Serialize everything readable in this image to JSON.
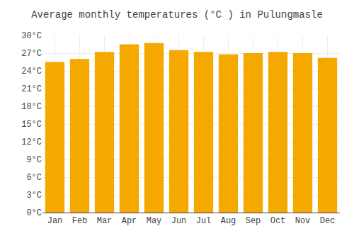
{
  "chart_data": {
    "type": "bar",
    "title": "Average monthly temperatures (°C ) in Pulungmasle",
    "categories": [
      "Jan",
      "Feb",
      "Mar",
      "Apr",
      "May",
      "Jun",
      "Jul",
      "Aug",
      "Sep",
      "Oct",
      "Nov",
      "Dec"
    ],
    "values": [
      25.5,
      26.0,
      27.2,
      28.5,
      28.7,
      27.5,
      27.2,
      26.8,
      27.0,
      27.2,
      27.0,
      26.2
    ],
    "color": "#F5A800",
    "ylim": [
      0,
      30
    ],
    "yticks": [
      {
        "value": 0,
        "label": "0°C"
      },
      {
        "value": 3,
        "label": "3°C"
      },
      {
        "value": 6,
        "label": "6°C"
      },
      {
        "value": 9,
        "label": "9°C"
      },
      {
        "value": 12,
        "label": "12°C"
      },
      {
        "value": 15,
        "label": "15°C"
      },
      {
        "value": 18,
        "label": "18°C"
      },
      {
        "value": 21,
        "label": "21°C"
      },
      {
        "value": 24,
        "label": "24°C"
      },
      {
        "value": 27,
        "label": "27°C"
      },
      {
        "value": 30,
        "label": "30°C"
      }
    ],
    "grid": true
  }
}
